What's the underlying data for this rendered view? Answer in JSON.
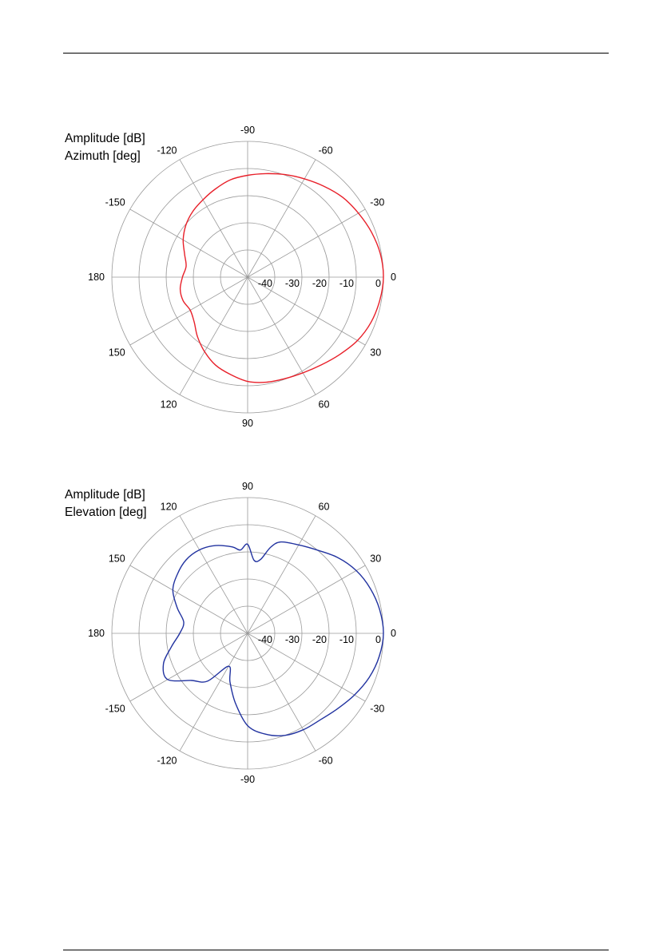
{
  "header_rule": true,
  "charts": [
    {
      "id": "azimuth",
      "legend": {
        "line1": "Amplitude [dB]",
        "line2": "Azimuth [deg]"
      }
    },
    {
      "id": "elevation",
      "legend": {
        "line1": "Amplitude [dB]",
        "line2": "Elevation [deg]"
      }
    }
  ],
  "chart_data": [
    {
      "type": "line",
      "subtype": "polar",
      "title": "",
      "radial_label": "Amplitude [dB]",
      "angular_label": "Azimuth [deg]",
      "rlim": [
        -50,
        0
      ],
      "radial_ticks": [
        "-40",
        "-30",
        "-20",
        "-10",
        "0"
      ],
      "radial_tick_values": [
        -40,
        -30,
        -20,
        -10,
        0
      ],
      "angle_ticks": [
        "0",
        "30",
        "60",
        "90",
        "120",
        "150",
        "180",
        "-150",
        "-120",
        "-90",
        "-60",
        "-30"
      ],
      "angle_tick_values": [
        0,
        30,
        60,
        90,
        120,
        150,
        180,
        210,
        240,
        270,
        300,
        330
      ],
      "angle_direction": "clockwise, 0 at right, positive angles downward",
      "grid": true,
      "color": "#e8202a",
      "series": [
        {
          "theta": [
            0,
            10,
            20,
            30,
            40,
            50,
            60,
            70,
            80,
            90,
            100,
            110,
            120,
            130,
            140,
            150,
            160,
            170,
            180,
            190,
            200,
            210,
            220,
            230,
            240,
            250,
            260,
            270,
            280,
            290,
            300,
            310,
            320,
            330,
            340,
            350,
            360
          ],
          "r": [
            0,
            -0.6,
            -1.6,
            -3.3,
            -5.7,
            -7.8,
            -9.3,
            -10.2,
            -10.7,
            -11.6,
            -13.6,
            -15.5,
            -18.3,
            -21.3,
            -24.3,
            -25.6,
            -24.7,
            -24.8,
            -26.0,
            -27.0,
            -25.3,
            -22.6,
            -20.3,
            -18.5,
            -17.1,
            -15.4,
            -13.6,
            -12.5,
            -11.3,
            -9.8,
            -8.2,
            -6.3,
            -4.3,
            -2.9,
            -1.5,
            -0.4,
            0
          ]
        }
      ]
    },
    {
      "type": "line",
      "subtype": "polar",
      "title": "",
      "radial_label": "Amplitude [dB]",
      "angular_label": "Elevation [deg]",
      "rlim": [
        -50,
        0
      ],
      "radial_ticks": [
        "-40",
        "-30",
        "-20",
        "-10",
        "0"
      ],
      "radial_tick_values": [
        -40,
        -30,
        -20,
        -10,
        0
      ],
      "angle_ticks": [
        "0",
        "30",
        "60",
        "90",
        "120",
        "150",
        "180",
        "-150",
        "-120",
        "-90",
        "-60",
        "-30"
      ],
      "angle_tick_values": [
        0,
        30,
        60,
        90,
        120,
        150,
        180,
        -150,
        -120,
        -90,
        -60,
        -30
      ],
      "angle_direction": "counter-clockwise, 0 at right, positive angles upward",
      "grid": true,
      "color": "#2233a0",
      "series": [
        {
          "theta": [
            0,
            10,
            20,
            30,
            40,
            50,
            60,
            70,
            75,
            80,
            85,
            90,
            95,
            100,
            110,
            120,
            130,
            140,
            150,
            160,
            170,
            180,
            -170,
            -160,
            -150,
            -140,
            -130,
            -120,
            -110,
            -100,
            -90,
            -80,
            -70,
            -60,
            -50,
            -40,
            -30,
            -20,
            -10,
            0
          ],
          "r": [
            0,
            -0.6,
            -1.9,
            -3.8,
            -6.6,
            -10.0,
            -12.4,
            -14.2,
            -17.1,
            -22.3,
            -23.0,
            -17.2,
            -19.2,
            -17.7,
            -15.6,
            -14.5,
            -14.7,
            -16.2,
            -18.2,
            -22.4,
            -26.1,
            -25.0,
            -21.5,
            -17.0,
            -16.0,
            -23.0,
            -27.0,
            -36.0,
            -31.0,
            -24.0,
            -16.0,
            -12.3,
            -10.0,
            -9.0,
            -8.4,
            -6.8,
            -4.6,
            -2.4,
            -0.8,
            0
          ]
        }
      ]
    }
  ]
}
